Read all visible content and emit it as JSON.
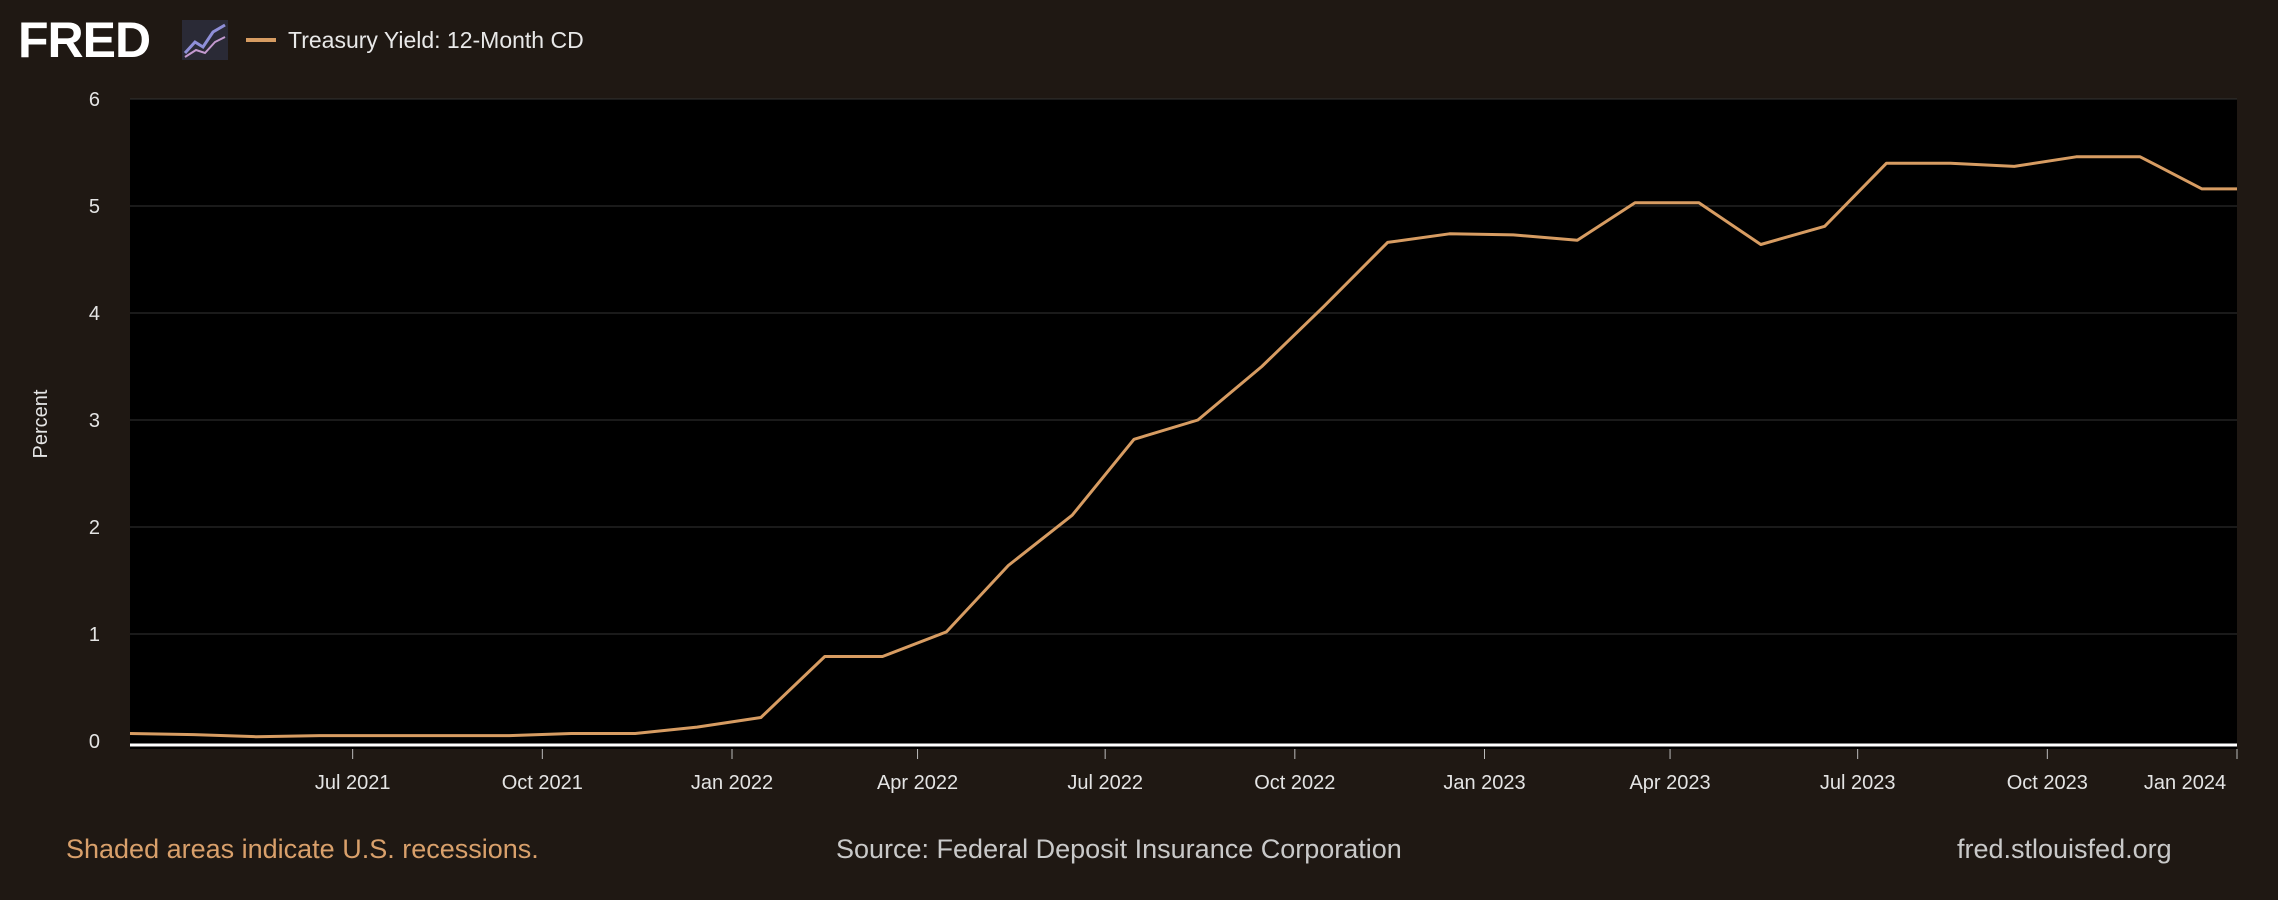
{
  "header": {
    "logo": "FRED",
    "logo_icon": "line-chart-icon",
    "legend_label": "Treasury Yield: 12-Month CD"
  },
  "colors": {
    "background": "#1f1813",
    "plot_background": "#000000",
    "series": "#d79c62",
    "grid": "#333333",
    "note": "#d9a06b"
  },
  "chart_data": {
    "type": "line",
    "title": "",
    "xlabel": "",
    "ylabel": "Percent",
    "ylim": [
      0,
      6
    ],
    "yticks": [
      "0",
      "1",
      "2",
      "3",
      "4",
      "5",
      "6"
    ],
    "xlim": [
      "2021-03-15",
      "2024-01-01"
    ],
    "xticks": [
      {
        "date": "2021-07-01",
        "label": "Jul 2021"
      },
      {
        "date": "2021-10-01",
        "label": "Oct 2021"
      },
      {
        "date": "2022-01-01",
        "label": "Jan 2022"
      },
      {
        "date": "2022-04-01",
        "label": "Apr 2022"
      },
      {
        "date": "2022-07-01",
        "label": "Jul 2022"
      },
      {
        "date": "2022-10-01",
        "label": "Oct 2022"
      },
      {
        "date": "2023-01-01",
        "label": "Jan 2023"
      },
      {
        "date": "2023-04-01",
        "label": "Apr 2023"
      },
      {
        "date": "2023-07-01",
        "label": "Jul 2023"
      },
      {
        "date": "2023-10-01",
        "label": "Oct 2023"
      },
      {
        "date": "2024-01-01",
        "label": "Jan 2024"
      }
    ],
    "grid": true,
    "legend": "top-left",
    "series": [
      {
        "name": "Treasury Yield: 12-Month CD",
        "x": [
          "2021-03-15",
          "2021-04-15",
          "2021-05-15",
          "2021-06-15",
          "2021-07-15",
          "2021-08-15",
          "2021-09-15",
          "2021-10-15",
          "2021-11-15",
          "2021-12-15",
          "2022-01-15",
          "2022-02-15",
          "2022-03-15",
          "2022-04-15",
          "2022-05-15",
          "2022-06-15",
          "2022-07-15",
          "2022-08-15",
          "2022-09-15",
          "2022-10-15",
          "2022-11-15",
          "2022-12-15",
          "2023-01-15",
          "2023-02-15",
          "2023-03-15",
          "2023-04-15",
          "2023-05-15",
          "2023-06-15",
          "2023-07-15",
          "2023-08-15",
          "2023-09-15",
          "2023-10-15",
          "2023-11-15",
          "2023-12-15",
          "2024-01-01"
        ],
        "values": [
          0.07,
          0.06,
          0.04,
          0.05,
          0.05,
          0.05,
          0.05,
          0.07,
          0.07,
          0.13,
          0.22,
          0.79,
          0.79,
          1.02,
          1.64,
          2.11,
          2.82,
          3.0,
          3.5,
          4.06,
          4.66,
          4.74,
          4.73,
          4.68,
          5.03,
          5.03,
          4.64,
          4.81,
          5.4,
          5.4,
          5.37,
          5.46,
          5.46,
          5.16,
          5.16
        ]
      }
    ]
  },
  "footer": {
    "note": "Shaded areas indicate U.S. recessions.",
    "source": "Source: Federal Deposit Insurance Corporation",
    "url": "fred.stlouisfed.org"
  }
}
